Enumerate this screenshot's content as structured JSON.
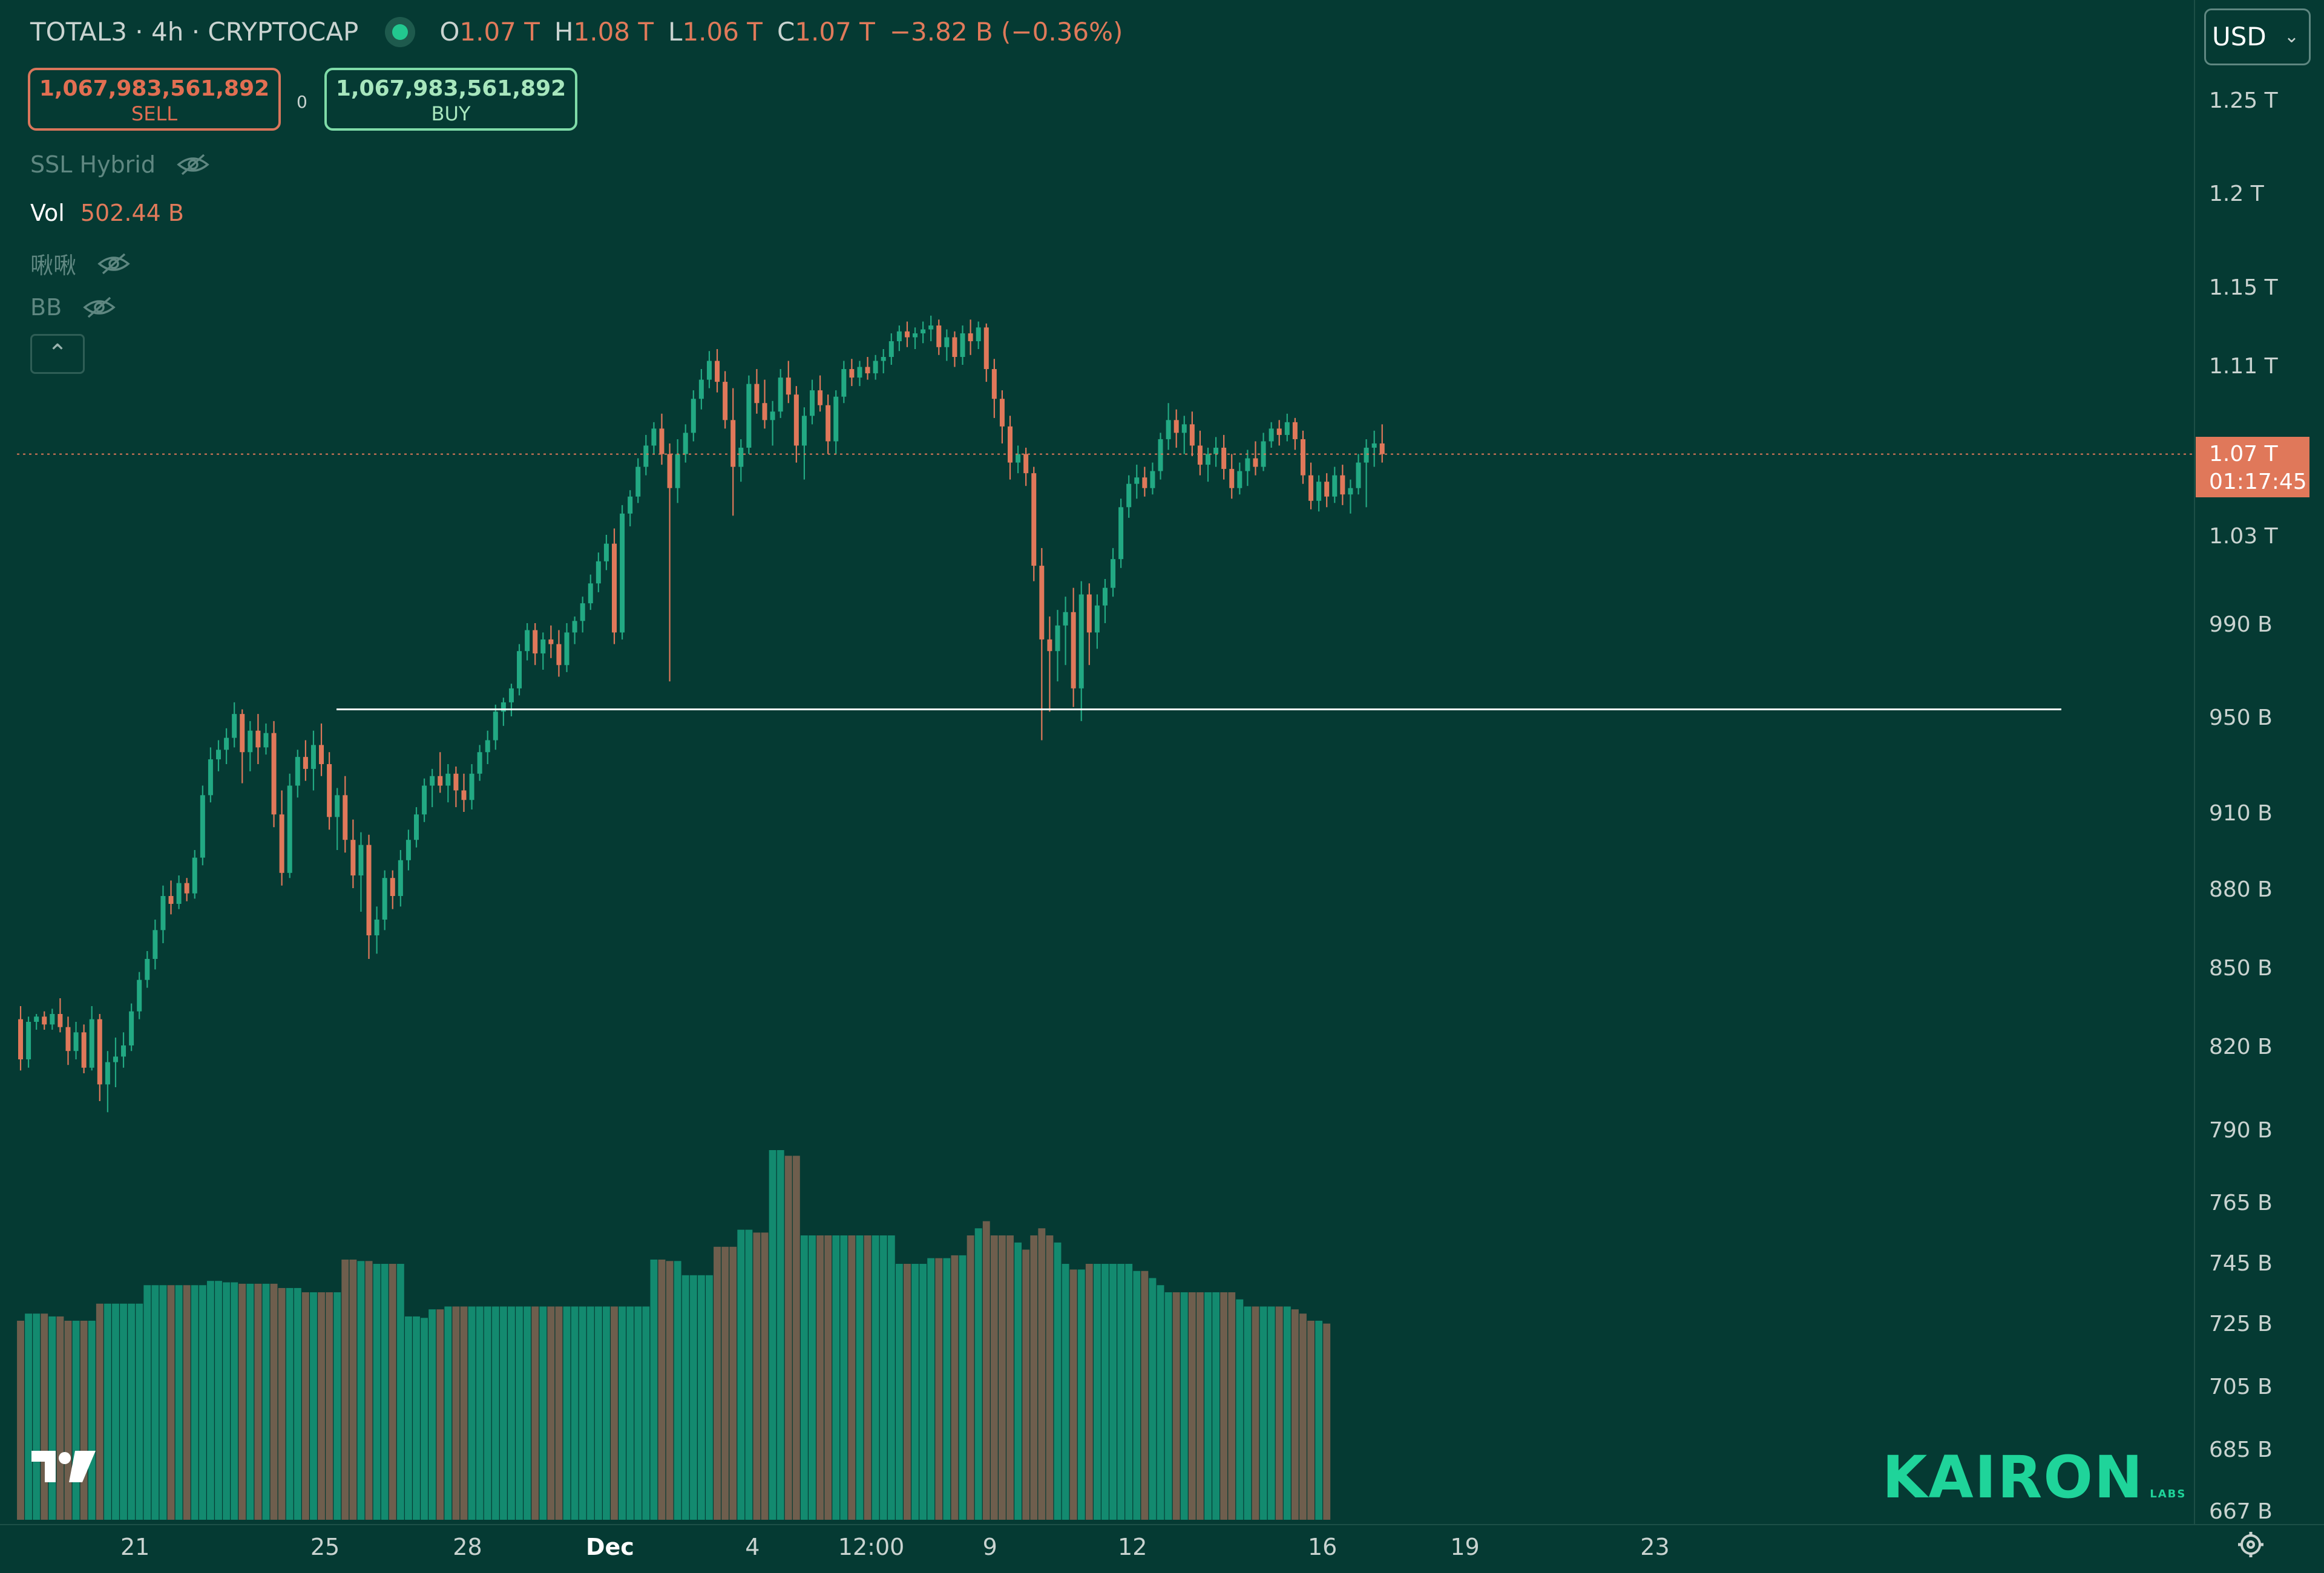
{
  "header": {
    "symbol": "TOTAL3 · 4h · CRYPTOCAP",
    "o_label": "O",
    "o_value": "1.07 T",
    "h_label": "H",
    "h_value": "1.08 T",
    "l_label": "L",
    "l_value": "1.06 T",
    "c_label": "C",
    "c_value": "1.07 T",
    "change": "−3.82 B (−0.36%)"
  },
  "trade": {
    "sell_price": "1,067,983,561,892",
    "sell_label": "SELL",
    "buy_price": "1,067,983,561,892",
    "buy_label": "BUY",
    "spread": "0"
  },
  "indicators": {
    "ssl": "SSL Hybrid",
    "vol_label": "Vol",
    "vol_value": "502.44 B",
    "custom": "啾啾",
    "bb": "BB"
  },
  "currency": {
    "label": "USD",
    "chevron": "⌄"
  },
  "last_price": {
    "value": "1.07 T",
    "countdown": "01:17:45"
  },
  "brand": {
    "name": "KAIRON",
    "sub": "LABS"
  },
  "colors": {
    "background": "#053a33",
    "up": "#22a983",
    "down": "#e0785a",
    "volume_up": "#138a6f",
    "volume_down": "#6e5e4d",
    "support_line": "#ffffff"
  },
  "chart_data": {
    "type": "candlestick",
    "ylim": [
      660000000000,
      1280000000000
    ],
    "y_ticks": [
      {
        "value": 1250000000000,
        "label": "1.25 T"
      },
      {
        "value": 1200000000000,
        "label": "1.2 T"
      },
      {
        "value": 1150000000000,
        "label": "1.15 T"
      },
      {
        "value": 1110000000000,
        "label": "1.11 T"
      },
      {
        "value": 1030000000000,
        "label": "1.03 T"
      },
      {
        "value": 990000000000,
        "label": "990 B"
      },
      {
        "value": 950000000000,
        "label": "950 B"
      },
      {
        "value": 910000000000,
        "label": "910 B"
      },
      {
        "value": 880000000000,
        "label": "880 B"
      },
      {
        "value": 850000000000,
        "label": "850 B"
      },
      {
        "value": 820000000000,
        "label": "820 B"
      },
      {
        "value": 790000000000,
        "label": "790 B"
      },
      {
        "value": 765000000000,
        "label": "765 B"
      },
      {
        "value": 745000000000,
        "label": "745 B"
      },
      {
        "value": 725000000000,
        "label": "725 B"
      },
      {
        "value": 705000000000,
        "label": "705 B"
      },
      {
        "value": 685000000000,
        "label": "685 B"
      },
      {
        "value": 667000000000,
        "label": "667 B"
      }
    ],
    "x_ticks": [
      {
        "index": 14,
        "label": "21"
      },
      {
        "index": 38,
        "label": "25"
      },
      {
        "index": 56,
        "label": "28"
      },
      {
        "index": 74,
        "label": "Dec",
        "bold": true
      },
      {
        "index": 92,
        "label": "4"
      },
      {
        "index": 107,
        "label": "12:00"
      },
      {
        "index": 122,
        "label": "9"
      },
      {
        "index": 140,
        "label": "12"
      },
      {
        "index": 164,
        "label": "16"
      },
      {
        "index": 182,
        "label": "19"
      },
      {
        "index": 206,
        "label": "23"
      }
    ],
    "support_level": 953000000000,
    "last_price": 1067983561892,
    "ohlc": [
      [
        830,
        835,
        811,
        815
      ],
      [
        815,
        831,
        812,
        829
      ],
      [
        829,
        832,
        826,
        831
      ],
      [
        831,
        833,
        826,
        828
      ],
      [
        828,
        834,
        826,
        832
      ],
      [
        832,
        838,
        825,
        827
      ],
      [
        827,
        831,
        813,
        818
      ],
      [
        818,
        829,
        815,
        825
      ],
      [
        825,
        828,
        810,
        812
      ],
      [
        812,
        835,
        811,
        830
      ],
      [
        830,
        832,
        800,
        806
      ],
      [
        806,
        818,
        796,
        814
      ],
      [
        814,
        823,
        805,
        816
      ],
      [
        816,
        825,
        812,
        820
      ],
      [
        820,
        836,
        818,
        833
      ],
      [
        833,
        848,
        830,
        845
      ],
      [
        845,
        856,
        842,
        853
      ],
      [
        853,
        868,
        849,
        864
      ],
      [
        864,
        881,
        859,
        877
      ],
      [
        877,
        883,
        870,
        874
      ],
      [
        874,
        885,
        872,
        882
      ],
      [
        882,
        884,
        875,
        878
      ],
      [
        878,
        895,
        876,
        892
      ],
      [
        892,
        921,
        889,
        917
      ],
      [
        917,
        937,
        914,
        932
      ],
      [
        932,
        940,
        927,
        936
      ],
      [
        936,
        945,
        930,
        941
      ],
      [
        941,
        956,
        937,
        951
      ],
      [
        951,
        953,
        922,
        935
      ],
      [
        935,
        948,
        927,
        944
      ],
      [
        944,
        951,
        930,
        937
      ],
      [
        937,
        947,
        934,
        943
      ],
      [
        943,
        948,
        904,
        909
      ],
      [
        909,
        919,
        881,
        886
      ],
      [
        886,
        926,
        884,
        921
      ],
      [
        921,
        936,
        916,
        933
      ],
      [
        933,
        940,
        923,
        928
      ],
      [
        928,
        944,
        919,
        938
      ],
      [
        938,
        947,
        925,
        930
      ],
      [
        930,
        935,
        903,
        908
      ],
      [
        908,
        920,
        895,
        917
      ],
      [
        917,
        925,
        894,
        899
      ],
      [
        899,
        907,
        880,
        885
      ],
      [
        885,
        902,
        871,
        897
      ],
      [
        897,
        901,
        853,
        862
      ],
      [
        862,
        873,
        855,
        868
      ],
      [
        868,
        887,
        864,
        884
      ],
      [
        884,
        887,
        872,
        877
      ],
      [
        877,
        895,
        873,
        891
      ],
      [
        891,
        903,
        887,
        899
      ],
      [
        899,
        912,
        896,
        909
      ],
      [
        909,
        924,
        906,
        921
      ],
      [
        921,
        928,
        912,
        925
      ],
      [
        925,
        935,
        918,
        921
      ],
      [
        921,
        930,
        914,
        926
      ],
      [
        926,
        929,
        912,
        919
      ],
      [
        919,
        926,
        910,
        915
      ],
      [
        915,
        930,
        911,
        926
      ],
      [
        926,
        938,
        923,
        935
      ],
      [
        935,
        944,
        930,
        940
      ],
      [
        940,
        955,
        936,
        952
      ],
      [
        952,
        958,
        946,
        956
      ],
      [
        956,
        964,
        950,
        962
      ],
      [
        962,
        981,
        959,
        978
      ],
      [
        978,
        990,
        974,
        987
      ],
      [
        987,
        990,
        972,
        977
      ],
      [
        977,
        986,
        970,
        983
      ],
      [
        983,
        989,
        975,
        981
      ],
      [
        981,
        987,
        967,
        972
      ],
      [
        972,
        990,
        969,
        986
      ],
      [
        986,
        993,
        981,
        991
      ],
      [
        991,
        1002,
        986,
        999
      ],
      [
        999,
        1012,
        996,
        1008
      ],
      [
        1008,
        1022,
        1004,
        1018
      ],
      [
        1018,
        1030,
        1014,
        1026
      ],
      [
        1026,
        1033,
        981,
        986
      ],
      [
        986,
        1044,
        983,
        1040
      ],
      [
        1040,
        1051,
        1034,
        1048
      ],
      [
        1048,
        1066,
        1045,
        1062
      ],
      [
        1062,
        1077,
        1058,
        1072
      ],
      [
        1072,
        1083,
        1068,
        1080
      ],
      [
        1080,
        1087,
        1063,
        1068
      ],
      [
        1068,
        1073,
        965,
        1052
      ],
      [
        1052,
        1075,
        1045,
        1068
      ],
      [
        1068,
        1082,
        1064,
        1078
      ],
      [
        1078,
        1098,
        1074,
        1094
      ],
      [
        1094,
        1108,
        1089,
        1103
      ],
      [
        1103,
        1117,
        1099,
        1112
      ],
      [
        1112,
        1118,
        1097,
        1102
      ],
      [
        1102,
        1107,
        1080,
        1084
      ],
      [
        1084,
        1099,
        1039,
        1062
      ],
      [
        1062,
        1075,
        1055,
        1071
      ],
      [
        1071,
        1105,
        1068,
        1101
      ],
      [
        1101,
        1108,
        1087,
        1092
      ],
      [
        1092,
        1103,
        1080,
        1084
      ],
      [
        1084,
        1093,
        1072,
        1088
      ],
      [
        1088,
        1108,
        1085,
        1104
      ],
      [
        1104,
        1112,
        1092,
        1096
      ],
      [
        1096,
        1100,
        1064,
        1072
      ],
      [
        1072,
        1090,
        1056,
        1086
      ],
      [
        1086,
        1103,
        1082,
        1098
      ],
      [
        1098,
        1105,
        1088,
        1091
      ],
      [
        1091,
        1096,
        1068,
        1074
      ],
      [
        1074,
        1098,
        1068,
        1095
      ],
      [
        1095,
        1112,
        1092,
        1108
      ],
      [
        1108,
        1113,
        1100,
        1104
      ],
      [
        1104,
        1112,
        1100,
        1109
      ],
      [
        1109,
        1114,
        1103,
        1106
      ],
      [
        1106,
        1115,
        1103,
        1112
      ],
      [
        1112,
        1118,
        1106,
        1114
      ],
      [
        1114,
        1126,
        1110,
        1122
      ],
      [
        1122,
        1130,
        1117,
        1127
      ],
      [
        1127,
        1132,
        1119,
        1124
      ],
      [
        1124,
        1129,
        1118,
        1126
      ],
      [
        1126,
        1132,
        1121,
        1128
      ],
      [
        1128,
        1135,
        1122,
        1130
      ],
      [
        1130,
        1133,
        1115,
        1119
      ],
      [
        1119,
        1128,
        1112,
        1124
      ],
      [
        1124,
        1127,
        1109,
        1114
      ],
      [
        1114,
        1130,
        1110,
        1126
      ],
      [
        1126,
        1133,
        1115,
        1122
      ],
      [
        1122,
        1132,
        1118,
        1129
      ],
      [
        1129,
        1131,
        1102,
        1108
      ],
      [
        1108,
        1113,
        1085,
        1094
      ],
      [
        1094,
        1098,
        1073,
        1081
      ],
      [
        1081,
        1086,
        1056,
        1064
      ],
      [
        1064,
        1072,
        1059,
        1068
      ],
      [
        1068,
        1071,
        1053,
        1059
      ],
      [
        1059,
        1062,
        1009,
        1016
      ],
      [
        1016,
        1024,
        940,
        983
      ],
      [
        983,
        993,
        952,
        978
      ],
      [
        978,
        996,
        965,
        989
      ],
      [
        989,
        1002,
        972,
        995
      ],
      [
        995,
        1006,
        954,
        962
      ],
      [
        962,
        1009,
        948,
        1003
      ],
      [
        1003,
        1008,
        972,
        986
      ],
      [
        986,
        1003,
        979,
        998
      ],
      [
        998,
        1010,
        990,
        1006
      ],
      [
        1006,
        1024,
        1002,
        1019
      ],
      [
        1019,
        1047,
        1015,
        1043
      ],
      [
        1043,
        1058,
        1038,
        1054
      ],
      [
        1054,
        1063,
        1047,
        1057
      ],
      [
        1057,
        1062,
        1048,
        1052
      ],
      [
        1052,
        1064,
        1049,
        1060
      ],
      [
        1060,
        1078,
        1056,
        1075
      ],
      [
        1075,
        1092,
        1070,
        1084
      ],
      [
        1084,
        1089,
        1071,
        1078
      ],
      [
        1078,
        1086,
        1068,
        1082
      ],
      [
        1082,
        1088,
        1067,
        1072
      ],
      [
        1072,
        1079,
        1058,
        1063
      ],
      [
        1063,
        1071,
        1055,
        1068
      ],
      [
        1068,
        1076,
        1062,
        1071
      ],
      [
        1071,
        1077,
        1056,
        1061
      ],
      [
        1061,
        1068,
        1047,
        1052
      ],
      [
        1052,
        1064,
        1049,
        1060
      ],
      [
        1060,
        1070,
        1053,
        1066
      ],
      [
        1066,
        1074,
        1058,
        1062
      ],
      [
        1062,
        1078,
        1060,
        1074
      ],
      [
        1074,
        1083,
        1071,
        1080
      ],
      [
        1080,
        1084,
        1072,
        1077
      ],
      [
        1077,
        1087,
        1074,
        1083
      ],
      [
        1083,
        1085,
        1070,
        1075
      ],
      [
        1075,
        1079,
        1054,
        1058
      ],
      [
        1058,
        1064,
        1042,
        1046
      ],
      [
        1046,
        1058,
        1041,
        1055
      ],
      [
        1055,
        1059,
        1043,
        1048
      ],
      [
        1048,
        1062,
        1045,
        1058
      ],
      [
        1058,
        1063,
        1044,
        1049
      ],
      [
        1049,
        1056,
        1040,
        1052
      ],
      [
        1052,
        1068,
        1049,
        1064
      ],
      [
        1064,
        1075,
        1043,
        1071
      ],
      [
        1071,
        1079,
        1062,
        1073
      ],
      [
        1073,
        1082,
        1064,
        1068
      ]
    ],
    "volume": [
      140,
      145,
      145,
      145,
      143,
      143,
      140,
      140,
      140,
      140,
      152,
      152,
      152,
      152,
      152,
      152,
      165,
      165,
      165,
      165,
      165,
      165,
      165,
      165,
      168,
      168,
      167,
      167,
      166,
      166,
      166,
      166,
      166,
      163,
      163,
      163,
      160,
      160,
      160,
      160,
      160,
      183,
      183,
      182,
      182,
      180,
      180,
      180,
      180,
      143,
      143,
      142,
      148,
      148,
      150,
      150,
      150,
      150,
      150,
      150,
      150,
      150,
      150,
      150,
      150,
      150,
      150,
      150,
      150,
      150,
      150,
      150,
      150,
      150,
      150,
      150,
      150,
      150,
      150,
      150,
      183,
      183,
      182,
      182,
      172,
      172,
      172,
      172,
      192,
      192,
      192,
      204,
      204,
      202,
      202,
      260,
      260,
      256,
      256,
      200,
      200,
      200,
      200,
      200,
      200,
      200,
      200,
      200,
      200,
      200,
      200,
      180,
      180,
      180,
      180,
      184,
      184,
      184,
      186,
      186,
      200,
      205,
      210,
      200,
      200,
      200,
      195,
      190,
      200,
      205,
      200,
      195,
      180,
      176,
      176,
      180,
      180,
      180,
      180,
      180,
      180,
      175,
      175,
      170,
      165,
      160,
      160,
      160,
      160,
      160,
      160,
      160,
      160,
      160,
      155,
      150,
      150,
      150,
      150,
      150,
      150,
      148,
      145,
      140,
      140,
      138
    ]
  }
}
